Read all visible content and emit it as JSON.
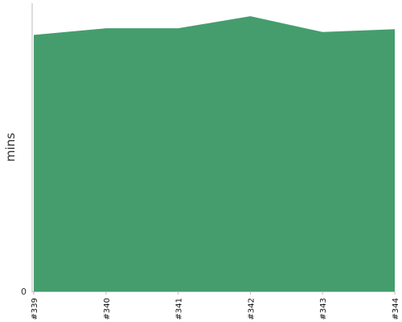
{
  "chart_data": {
    "type": "area",
    "categories": [
      "#339",
      "#340",
      "#341",
      "#342",
      "#343",
      "#344"
    ],
    "series": [
      {
        "values": [
          89,
          91.3,
          91.3,
          95.5,
          90,
          91
        ],
        "color": "#459d6d"
      }
    ],
    "ylabel": "mins",
    "xlabel": "",
    "title": "",
    "y_ticks": [
      "0"
    ],
    "ylim": [
      0,
      100
    ],
    "grid": false,
    "legend": "none"
  },
  "colors": {
    "axis": "#bbbbbb",
    "fill": "#459d6d"
  }
}
